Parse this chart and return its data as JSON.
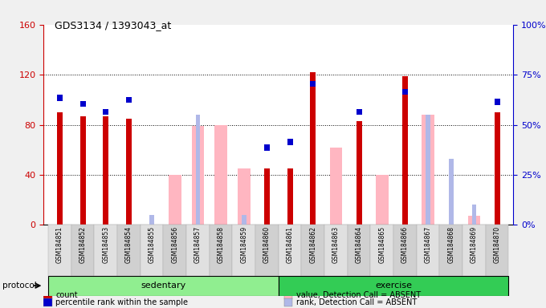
{
  "title": "GDS3134 / 1393043_at",
  "samples": [
    "GSM184851",
    "GSM184852",
    "GSM184853",
    "GSM184854",
    "GSM184855",
    "GSM184856",
    "GSM184857",
    "GSM184858",
    "GSM184859",
    "GSM184860",
    "GSM184861",
    "GSM184862",
    "GSM184863",
    "GSM184864",
    "GSM184865",
    "GSM184866",
    "GSM184867",
    "GSM184868",
    "GSM184869",
    "GSM184870"
  ],
  "count": [
    90,
    87,
    87,
    85,
    0,
    0,
    0,
    0,
    0,
    45,
    45,
    122,
    0,
    83,
    0,
    119,
    0,
    0,
    0,
    90
  ],
  "percentile_rank": [
    65,
    62,
    58,
    64,
    0,
    0,
    0,
    0,
    0,
    40,
    43,
    72,
    0,
    58,
    0,
    68,
    0,
    0,
    0,
    63
  ],
  "value_absent": [
    0,
    0,
    0,
    0,
    0,
    40,
    79,
    80,
    45,
    0,
    0,
    0,
    62,
    0,
    40,
    0,
    88,
    0,
    7,
    0
  ],
  "rank_absent": [
    0,
    0,
    0,
    0,
    5,
    0,
    55,
    0,
    5,
    0,
    0,
    0,
    0,
    0,
    0,
    0,
    55,
    33,
    10,
    0
  ],
  "left_ylim": [
    0,
    160
  ],
  "right_ylim": [
    0,
    100
  ],
  "left_yticks": [
    0,
    40,
    80,
    120,
    160
  ],
  "right_yticks": [
    0,
    25,
    50,
    75,
    100
  ],
  "right_yticklabels": [
    "0%",
    "25%",
    "50%",
    "75%",
    "100%"
  ],
  "count_color": "#cc0000",
  "percentile_color": "#0000cc",
  "value_absent_color": "#ffb6c1",
  "rank_absent_color": "#b0b8e8",
  "background_color": "#f0f0f0",
  "plot_bg_color": "#ffffff",
  "legend_items": [
    {
      "label": "count",
      "color": "#cc0000"
    },
    {
      "label": "percentile rank within the sample",
      "color": "#0000cc"
    },
    {
      "label": "value, Detection Call = ABSENT",
      "color": "#ffb6c1"
    },
    {
      "label": "rank, Detection Call = ABSENT",
      "color": "#b0b8e8"
    }
  ],
  "protocol_groups": [
    {
      "label": "sedentary",
      "start": 0,
      "end": 10,
      "color": "#90ee90"
    },
    {
      "label": "exercise",
      "start": 10,
      "end": 20,
      "color": "#33cc55"
    }
  ]
}
